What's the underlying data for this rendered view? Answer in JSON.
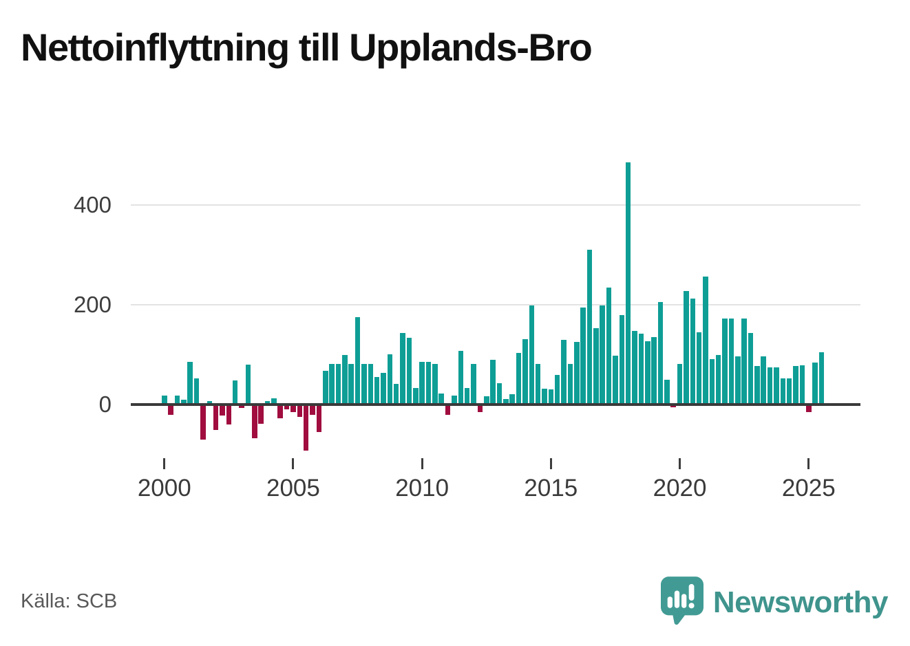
{
  "title": "Nettoinflyttning till Upplands-Bro",
  "source": "Källa: SCB",
  "branding": {
    "name": "Newsworthy",
    "color": "#3F948D"
  },
  "colors": {
    "positive": "#0E9E96",
    "negative": "#A00D3E",
    "axis": "#3A3A3A",
    "gridline": "#E3E3E3",
    "tick_label": "#3A3A3A",
    "title": "#111111",
    "source": "#595959"
  },
  "chart_data": {
    "type": "bar",
    "title": "Nettoinflyttning till Upplands-Bro",
    "frequency": "quarterly",
    "period_start": "2000 Q1",
    "period_end": "2025 Q3",
    "values": [
      18,
      -20,
      18,
      9,
      86,
      53,
      -70,
      7,
      -51,
      -22,
      -40,
      48,
      -7,
      80,
      -67,
      -39,
      7,
      12,
      -28,
      -10,
      -15,
      -25,
      -93,
      -20,
      -55,
      67,
      81,
      81,
      99,
      82,
      175,
      81,
      82,
      55,
      64,
      101,
      41,
      144,
      134,
      33,
      85,
      86,
      82,
      22,
      -20,
      18,
      108,
      33,
      82,
      -15,
      16,
      90,
      43,
      11,
      21,
      103,
      131,
      198,
      82,
      32,
      30,
      60,
      130,
      82,
      125,
      195,
      310,
      153,
      198,
      234,
      98,
      179,
      486,
      148,
      142,
      127,
      135,
      206,
      50,
      -6,
      81,
      227,
      212,
      145,
      256,
      91,
      99,
      172,
      172,
      96,
      172,
      144,
      77,
      96,
      74,
      74,
      52,
      52,
      77,
      78,
      -15,
      84,
      105
    ],
    "y_ticks": [
      0,
      200,
      400
    ],
    "ylim": [
      -130,
      520
    ],
    "x_tick_labels": [
      "2000",
      "2005",
      "2010",
      "2015",
      "2020",
      "2025"
    ],
    "x_tick_indices": [
      0,
      20,
      40,
      60,
      80,
      100
    ],
    "grid": "horizontal",
    "legend": "none",
    "positive_color": "#0E9E96",
    "negative_color": "#A00D3E"
  }
}
